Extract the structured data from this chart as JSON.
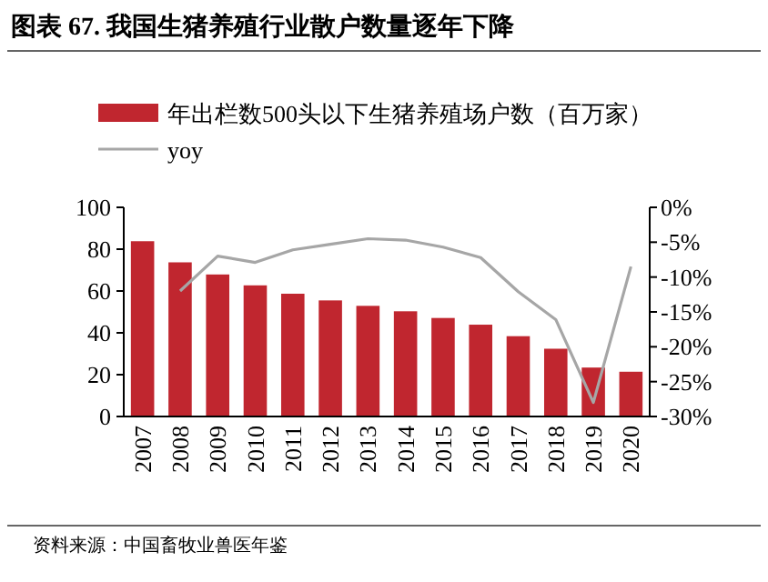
{
  "chart_data": {
    "type": "bar",
    "title": "图表 67. 我国生猪养殖行业散户数量逐年下降",
    "categories": [
      "2007",
      "2008",
      "2009",
      "2010",
      "2011",
      "2012",
      "2013",
      "2014",
      "2015",
      "2016",
      "2017",
      "2018",
      "2019",
      "2020"
    ],
    "series": [
      {
        "name": "年出栏数500头以下生猪养殖场户数（百万家）",
        "color": "#c0262f",
        "values": [
          83.8,
          73.7,
          67.9,
          62.7,
          58.7,
          55.5,
          52.9,
          50.3,
          47.1,
          43.9,
          38.4,
          32.4,
          23.4,
          21.4
        ]
      },
      {
        "name": "yoy",
        "type": "line",
        "axis": "y2",
        "color": "#a6a6a6",
        "values": [
          null,
          -12.0,
          -7.0,
          -7.9,
          -6.1,
          -5.3,
          -4.5,
          -4.7,
          -5.7,
          -7.2,
          -12.1,
          -16.1,
          -28.0,
          -8.5
        ]
      }
    ],
    "ylim": [
      0,
      100
    ],
    "yticks": [
      0,
      20,
      40,
      60,
      80,
      100
    ],
    "y2lim": [
      -30,
      0
    ],
    "y2ticks": [
      {
        "value": 0,
        "label": "0%"
      },
      {
        "value": -5,
        "label": "-5%"
      },
      {
        "value": -10,
        "label": "-10%"
      },
      {
        "value": -15,
        "label": "-15%"
      },
      {
        "value": -20,
        "label": "-20%"
      },
      {
        "value": -25,
        "label": "-25%"
      },
      {
        "value": -30,
        "label": "-30%"
      }
    ],
    "legend": "top",
    "grid": false,
    "annotations": [
      "资料来源：中国畜牧业兽医年鉴"
    ]
  }
}
